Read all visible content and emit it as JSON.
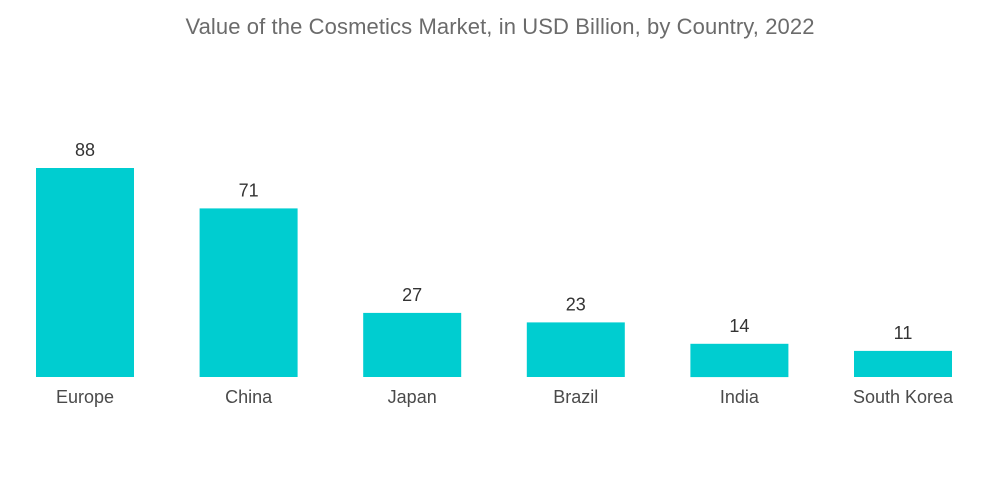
{
  "chart_data": {
    "type": "bar",
    "title": "Value of the Cosmetics Market, in USD Billion, by Country, 2022",
    "categories": [
      "Europe",
      "China",
      "Japan",
      "Brazil",
      "India",
      "South Korea"
    ],
    "values": [
      88,
      71,
      27,
      23,
      14,
      11
    ],
    "xlabel": "",
    "ylabel": "",
    "ylim": [
      0,
      88
    ],
    "grid": false,
    "legend": "none",
    "colors": {
      "bar": "#00cdd0",
      "title": "#6b6b6b",
      "labels": "#333333"
    }
  }
}
